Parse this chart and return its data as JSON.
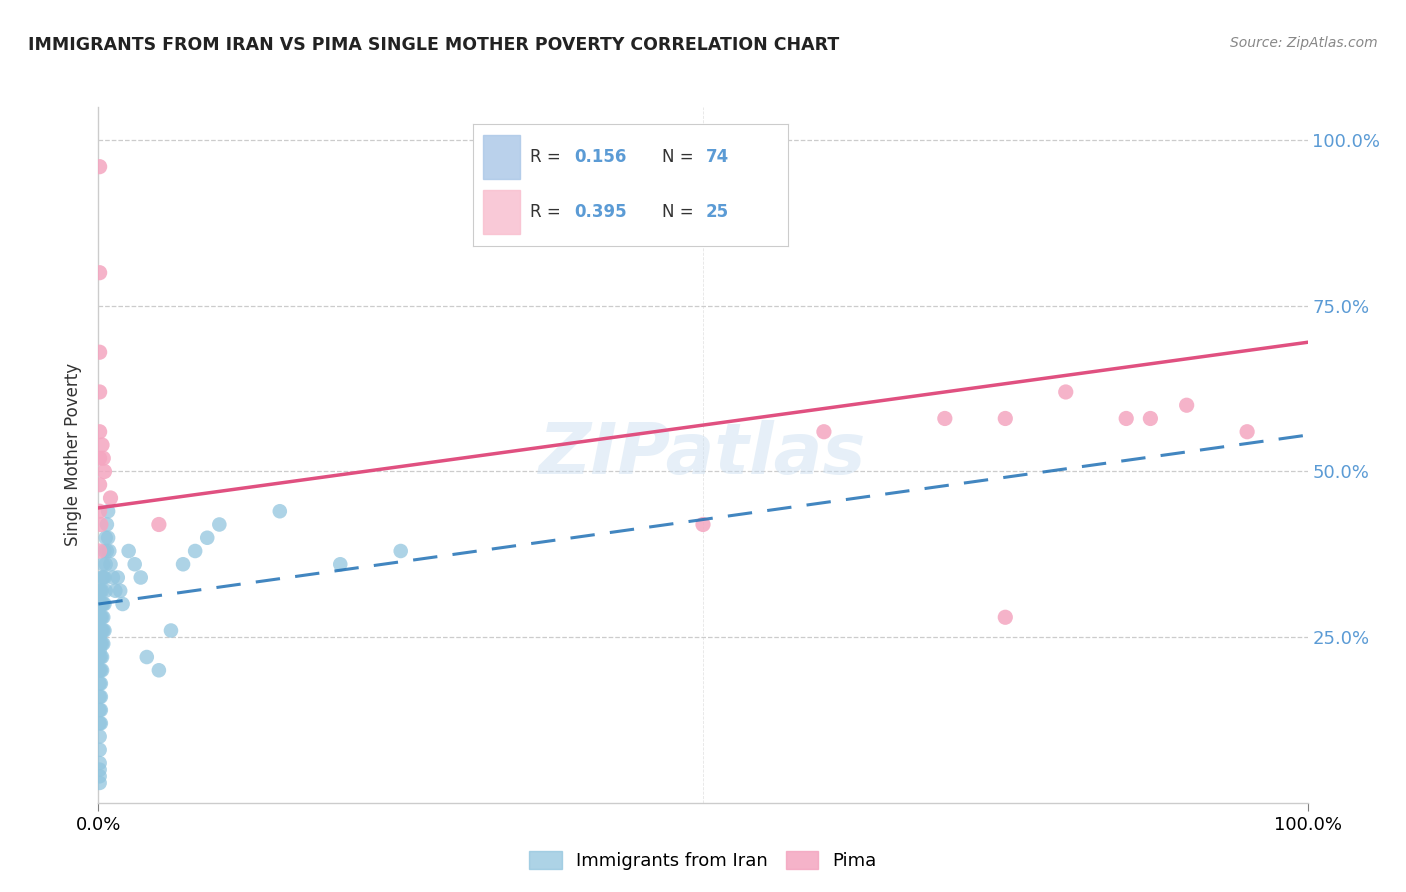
{
  "title": "IMMIGRANTS FROM IRAN VS PIMA SINGLE MOTHER POVERTY CORRELATION CHART",
  "source": "Source: ZipAtlas.com",
  "ylabel": "Single Mother Poverty",
  "watermark": "ZIPatlas",
  "blue_color": "#92c5de",
  "pink_color": "#f4a6c0",
  "blue_line_color": "#2171b5",
  "pink_line_color": "#e05080",
  "legend_box_blue": "#aec9e8",
  "legend_box_pink": "#f9c0d0",
  "right_tick_color": "#5b9bd5",
  "blue_scatter": [
    [
      0.001,
      0.32
    ],
    [
      0.001,
      0.3
    ],
    [
      0.001,
      0.28
    ],
    [
      0.001,
      0.26
    ],
    [
      0.001,
      0.25
    ],
    [
      0.001,
      0.24
    ],
    [
      0.001,
      0.23
    ],
    [
      0.001,
      0.22
    ],
    [
      0.001,
      0.2
    ],
    [
      0.001,
      0.18
    ],
    [
      0.001,
      0.16
    ],
    [
      0.001,
      0.14
    ],
    [
      0.001,
      0.12
    ],
    [
      0.001,
      0.1
    ],
    [
      0.001,
      0.08
    ],
    [
      0.001,
      0.06
    ],
    [
      0.001,
      0.05
    ],
    [
      0.001,
      0.04
    ],
    [
      0.001,
      0.03
    ],
    [
      0.002,
      0.32
    ],
    [
      0.002,
      0.3
    ],
    [
      0.002,
      0.28
    ],
    [
      0.002,
      0.26
    ],
    [
      0.002,
      0.24
    ],
    [
      0.002,
      0.22
    ],
    [
      0.002,
      0.2
    ],
    [
      0.002,
      0.18
    ],
    [
      0.002,
      0.16
    ],
    [
      0.002,
      0.14
    ],
    [
      0.002,
      0.12
    ],
    [
      0.003,
      0.34
    ],
    [
      0.003,
      0.32
    ],
    [
      0.003,
      0.3
    ],
    [
      0.003,
      0.28
    ],
    [
      0.003,
      0.26
    ],
    [
      0.003,
      0.24
    ],
    [
      0.003,
      0.22
    ],
    [
      0.003,
      0.2
    ],
    [
      0.004,
      0.36
    ],
    [
      0.004,
      0.34
    ],
    [
      0.004,
      0.3
    ],
    [
      0.004,
      0.28
    ],
    [
      0.004,
      0.26
    ],
    [
      0.004,
      0.24
    ],
    [
      0.005,
      0.38
    ],
    [
      0.005,
      0.34
    ],
    [
      0.005,
      0.3
    ],
    [
      0.005,
      0.26
    ],
    [
      0.006,
      0.4
    ],
    [
      0.006,
      0.36
    ],
    [
      0.006,
      0.32
    ],
    [
      0.007,
      0.42
    ],
    [
      0.007,
      0.38
    ],
    [
      0.008,
      0.44
    ],
    [
      0.008,
      0.4
    ],
    [
      0.009,
      0.38
    ],
    [
      0.01,
      0.36
    ],
    [
      0.012,
      0.34
    ],
    [
      0.014,
      0.32
    ],
    [
      0.016,
      0.34
    ],
    [
      0.018,
      0.32
    ],
    [
      0.02,
      0.3
    ],
    [
      0.025,
      0.38
    ],
    [
      0.03,
      0.36
    ],
    [
      0.035,
      0.34
    ],
    [
      0.04,
      0.22
    ],
    [
      0.05,
      0.2
    ],
    [
      0.06,
      0.26
    ],
    [
      0.07,
      0.36
    ],
    [
      0.08,
      0.38
    ],
    [
      0.09,
      0.4
    ],
    [
      0.1,
      0.42
    ],
    [
      0.15,
      0.44
    ],
    [
      0.2,
      0.36
    ],
    [
      0.25,
      0.38
    ]
  ],
  "pink_scatter": [
    [
      0.001,
      0.96
    ],
    [
      0.001,
      0.8
    ],
    [
      0.001,
      0.68
    ],
    [
      0.001,
      0.62
    ],
    [
      0.001,
      0.56
    ],
    [
      0.001,
      0.52
    ],
    [
      0.001,
      0.48
    ],
    [
      0.001,
      0.44
    ],
    [
      0.001,
      0.38
    ],
    [
      0.002,
      0.42
    ],
    [
      0.003,
      0.54
    ],
    [
      0.004,
      0.52
    ],
    [
      0.005,
      0.5
    ],
    [
      0.01,
      0.46
    ],
    [
      0.05,
      0.42
    ],
    [
      0.5,
      0.42
    ],
    [
      0.6,
      0.56
    ],
    [
      0.7,
      0.58
    ],
    [
      0.75,
      0.58
    ],
    [
      0.8,
      0.62
    ],
    [
      0.85,
      0.58
    ],
    [
      0.87,
      0.58
    ],
    [
      0.9,
      0.6
    ],
    [
      0.75,
      0.28
    ],
    [
      0.95,
      0.56
    ]
  ],
  "xlim": [
    0.0,
    1.0
  ],
  "ylim": [
    0.0,
    1.05
  ],
  "yticks": [
    0.0,
    0.25,
    0.5,
    0.75,
    1.0
  ],
  "ytick_labels": [
    "",
    "25.0%",
    "50.0%",
    "75.0%",
    "100.0%"
  ]
}
